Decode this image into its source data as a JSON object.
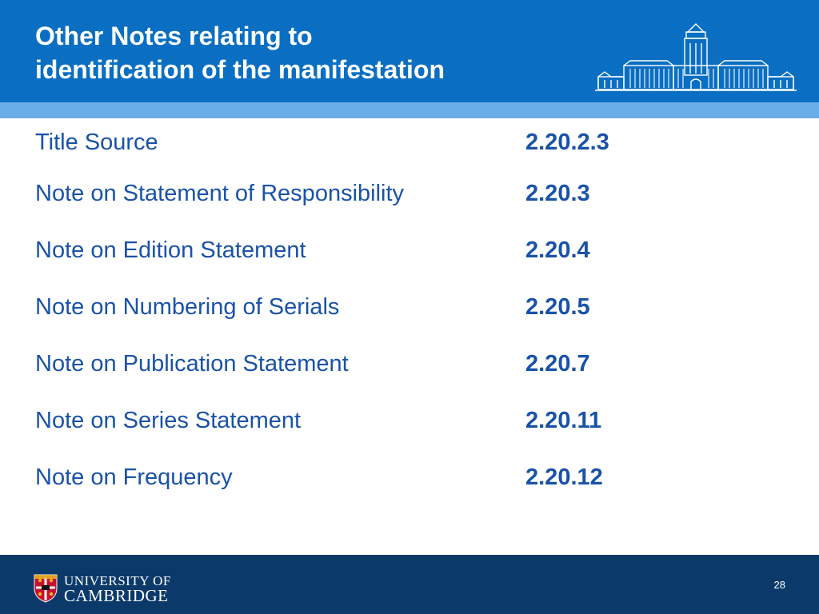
{
  "slide": {
    "title_lines": [
      "Other Notes relating to",
      "identification of the manifestation"
    ],
    "rows": [
      {
        "label": "Title Source",
        "ref": "2.20.2.3"
      },
      {
        "label": "Note on Statement of Responsibility",
        "ref": "2.20.3"
      },
      {
        "label": "Note on Edition Statement",
        "ref": "2.20.4"
      },
      {
        "label": "Note on Numbering of Serials",
        "ref": "2.20.5"
      },
      {
        "label": "Note on Publication Statement",
        "ref": "2.20.7"
      },
      {
        "label": "Note on Series Statement",
        "ref": "2.20.11"
      },
      {
        "label": "Note on Frequency",
        "ref": "2.20.12"
      }
    ],
    "page_number": "28"
  },
  "branding": {
    "logo_line1": "UNIVERSITY OF",
    "logo_line2": "CAMBRIDGE",
    "header_icon": "library-building-illustration",
    "logo_icon": "university-shield-icon"
  },
  "colors": {
    "header": "#0a6fc2",
    "header_stripe": "#6aaee8",
    "footer": "#0b3a6a",
    "body_text": "#1a52a8"
  }
}
